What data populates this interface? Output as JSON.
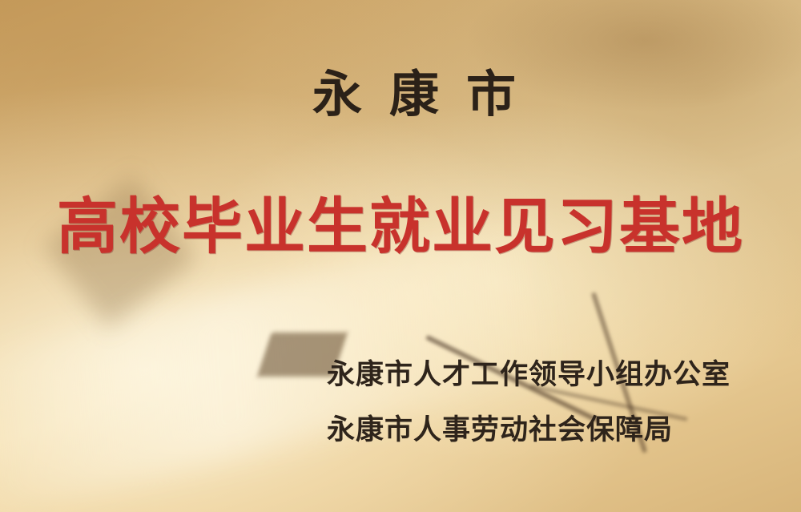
{
  "plaque": {
    "city": "永康市",
    "title": "高校毕业生就业见习基地",
    "issuers": [
      "永康市人才工作领导小组办公室",
      "永康市人事劳动社会保障局"
    ],
    "colors": {
      "background": "#e8cb94",
      "city_text": "#2b2118",
      "title_text": "#c8322c",
      "issuer_text": "#2e241b"
    }
  }
}
